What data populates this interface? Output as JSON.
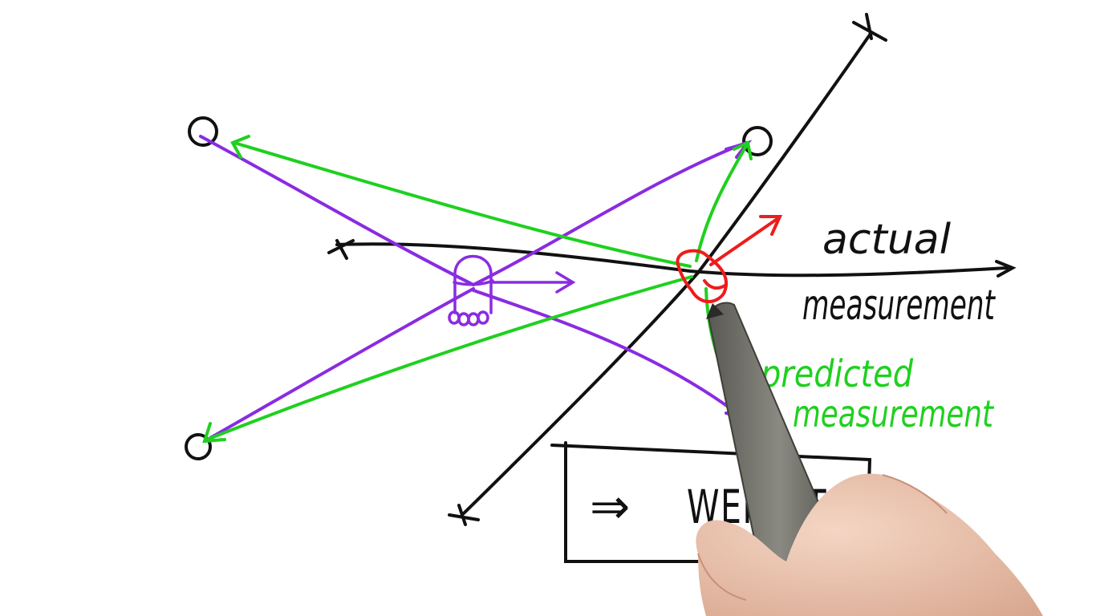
{
  "labels": {
    "actual_line1": "actual",
    "actual_line2": "measurement",
    "predicted_line1": "predicted",
    "predicted_line2": "measurement",
    "weight_arrow": "⇒",
    "weight_text": "WEIGHT"
  },
  "colors": {
    "axis": "#111111",
    "actual": "#8a2be2",
    "predicted": "#1fd01f",
    "robot": "#ee1c1c",
    "particle": "#8a2be2"
  },
  "icons": {
    "landmarks": "circle-landmark-icon",
    "particle": "robot-foot-icon",
    "hand": "hand-with-pen-icon"
  }
}
